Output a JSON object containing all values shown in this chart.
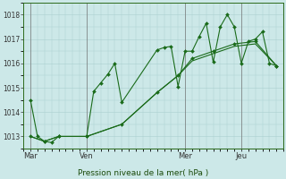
{
  "background_color": "#cce8e8",
  "grid_color": "#aacfcf",
  "line_color": "#1a6b1a",
  "marker_color": "#1a6b1a",
  "xlabel": "Pression niveau de la mer( hPa )",
  "yticks": [
    1013,
    1014,
    1015,
    1016,
    1017,
    1018
  ],
  "ylim": [
    1012.6,
    1018.4
  ],
  "xlim": [
    0,
    37
  ],
  "day_labels": [
    "Mar",
    "Ven",
    "Mer",
    "Jeu"
  ],
  "day_positions": [
    1,
    9,
    23,
    31
  ],
  "series1_x": [
    1,
    2,
    3,
    4,
    5,
    9,
    10,
    11,
    12,
    13,
    14,
    19,
    20,
    21,
    22,
    23,
    24,
    25,
    26,
    27,
    28,
    29,
    30,
    31,
    32,
    33,
    34,
    35,
    36
  ],
  "series1_y": [
    1014.5,
    1013.0,
    1012.8,
    1012.75,
    1013.0,
    1013.0,
    1014.85,
    1015.2,
    1015.55,
    1016.0,
    1014.4,
    1016.55,
    1016.65,
    1016.7,
    1015.05,
    1016.5,
    1016.5,
    1017.1,
    1017.65,
    1016.05,
    1017.5,
    1018.0,
    1017.5,
    1016.0,
    1016.9,
    1017.0,
    1017.3,
    1016.0,
    1015.9
  ],
  "series2_x": [
    1,
    3,
    5,
    9,
    14,
    19,
    22,
    24,
    27,
    30,
    33,
    36
  ],
  "series2_y": [
    1013.0,
    1012.8,
    1013.0,
    1013.0,
    1013.5,
    1014.8,
    1015.5,
    1016.2,
    1016.5,
    1016.8,
    1016.9,
    1015.9
  ],
  "series3_x": [
    1,
    3,
    5,
    9,
    14,
    19,
    22,
    24,
    27,
    30,
    33,
    36
  ],
  "series3_y": [
    1013.0,
    1012.8,
    1013.0,
    1013.0,
    1013.5,
    1014.8,
    1015.5,
    1016.1,
    1016.4,
    1016.7,
    1016.8,
    1015.9
  ]
}
